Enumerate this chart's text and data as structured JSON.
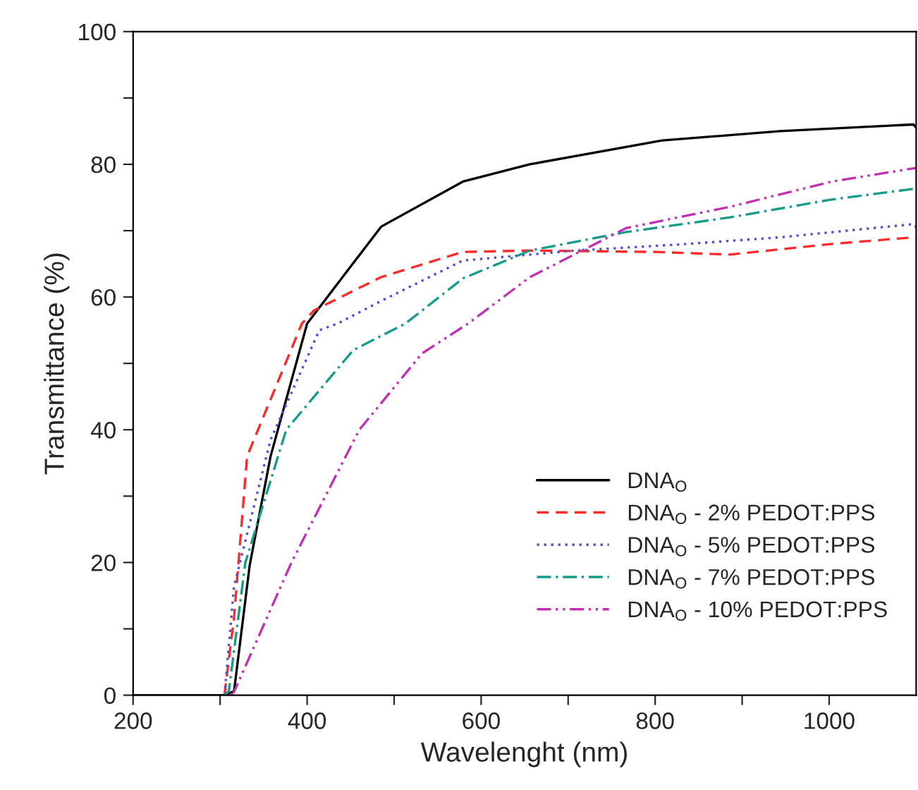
{
  "chart_data": {
    "type": "line",
    "xlabel": "Wavelenght (nm)",
    "ylabel": "Transmittance (%)",
    "xlim": [
      200,
      1100
    ],
    "ylim": [
      0,
      100
    ],
    "xticks": [
      200,
      {
        "value": 300,
        "label": null
      },
      400,
      {
        "value": 500,
        "label": null
      },
      600,
      {
        "value": 700,
        "label": null
      },
      800,
      {
        "value": 900,
        "label": null
      },
      1000
    ],
    "yticks": [
      0,
      {
        "value": 10,
        "label": null
      },
      20,
      {
        "value": 30,
        "label": null
      },
      40,
      {
        "value": 50,
        "label": null
      },
      60,
      {
        "value": 70,
        "label": null
      },
      80,
      {
        "value": 90,
        "label": null
      },
      100
    ],
    "grid": false,
    "legend": "bottom right",
    "marker": "none",
    "series": [
      {
        "name": "DNA$_{O}$",
        "color": "#000000",
        "line_style": "solid",
        "x": [
          200,
          305,
          310,
          316,
          334,
          358,
          400,
          485,
          579,
          656,
          808,
          944,
          1097,
          1100
        ],
        "values": [
          0,
          0,
          0.3,
          0.6,
          19.6,
          36,
          56,
          70.6,
          77.4,
          80,
          83.6,
          85,
          86,
          85.5
        ]
      },
      {
        "name": "DNA$_{O}$ - 2% PEDOT:PPS",
        "color": "#ff2a2a",
        "line_style": "dashed",
        "x": [
          305,
          316,
          331,
          394,
          408,
          485,
          579,
          656,
          800,
          886,
          1003,
          1097,
          1100
        ],
        "values": [
          0,
          11.7,
          36,
          56,
          58,
          63,
          66.8,
          67,
          66.8,
          66.4,
          68,
          69,
          69
        ]
      },
      {
        "name": "DNA$_{O}$ - 5% PEDOT:PPS",
        "color": "#5050d0",
        "line_style": "dotted",
        "x": [
          305,
          316,
          358,
          414,
          435,
          485,
          579,
          708,
          825,
          944,
          1097,
          1100
        ],
        "values": [
          0,
          16.4,
          38.5,
          55,
          56,
          59.4,
          65.5,
          67,
          67.9,
          69,
          71,
          70.5
        ]
      },
      {
        "name": "DNA$_{O}$ - 7% PEDOT:PPS",
        "color": "#169a8a",
        "line_style": "dashdot",
        "x": [
          305,
          310,
          329,
          376,
          453,
          513,
          579,
          656,
          767,
          886,
          1003,
          1097,
          1100
        ],
        "values": [
          0,
          0.6,
          20,
          40,
          52,
          56,
          62.8,
          67,
          69.8,
          72,
          74.7,
          76.3,
          76
        ]
      },
      {
        "name": "DNA$_{O}$ - 10% PEDOT:PPS",
        "color": "#c030b0",
        "line_style": "dashdotdot",
        "x": [
          312,
          316,
          382,
          460,
          532,
          585,
          656,
          767,
          886,
          1003,
          1097,
          1100
        ],
        "values": [
          0,
          0.5,
          20,
          40,
          51.5,
          56,
          63,
          70.4,
          73.6,
          77.4,
          79.4,
          79.4
        ]
      }
    ]
  }
}
